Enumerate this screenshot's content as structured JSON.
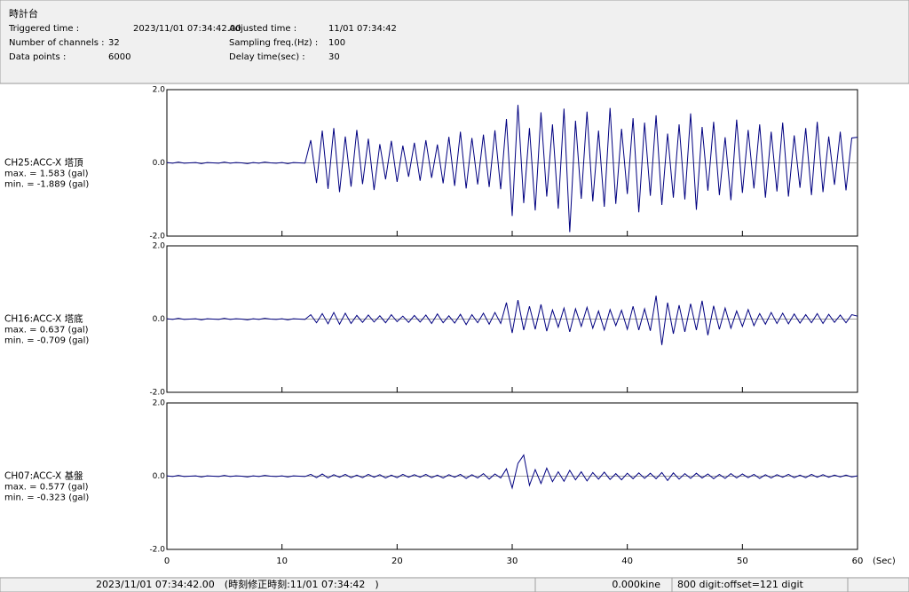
{
  "header": {
    "title": "時計台",
    "fields": [
      {
        "label": "Triggered time :",
        "value": "2023/11/01 07:34:42.00"
      },
      {
        "label": "Number of channels :",
        "value": "32"
      },
      {
        "label": "Data points :",
        "value": "6000"
      },
      {
        "label": "Adjusted time :",
        "value": "11/01 07:34:42"
      },
      {
        "label": "Sampling freq.(Hz) :",
        "value": "100"
      },
      {
        "label": "Delay time(sec) :",
        "value": "30"
      }
    ]
  },
  "status": [
    "2023/11/01 07:34:42.00　(時刻修正時刻:11/01 07:34:42　)",
    "0.000kine",
    "800 digit:offset=121 digit"
  ],
  "chart_data": [
    {
      "type": "line",
      "label": "CH25:ACC-X 塔頂",
      "max_label": "max. = 1.583 (gal)",
      "min_label": "min. = -1.889 (gal)",
      "x": [
        0,
        0.5,
        1,
        1.5,
        2,
        2.5,
        3,
        3.5,
        4,
        4.5,
        5,
        5.5,
        6,
        6.5,
        7,
        7.5,
        8,
        8.5,
        9,
        9.5,
        10,
        10.5,
        11,
        11.5,
        12,
        12.5,
        13,
        13.5,
        14,
        14.5,
        15,
        15.5,
        16,
        16.5,
        17,
        17.5,
        18,
        18.5,
        19,
        19.5,
        20,
        20.5,
        21,
        21.5,
        22,
        22.5,
        23,
        23.5,
        24,
        24.5,
        25,
        25.5,
        26,
        26.5,
        27,
        27.5,
        28,
        28.5,
        29,
        29.5,
        30,
        30.5,
        31,
        31.5,
        32,
        32.5,
        33,
        33.5,
        34,
        34.5,
        35,
        35.5,
        36,
        36.5,
        37,
        37.5,
        38,
        38.5,
        39,
        39.5,
        40,
        40.5,
        41,
        41.5,
        42,
        42.5,
        43,
        43.5,
        44,
        44.5,
        45,
        45.5,
        46,
        46.5,
        47,
        47.5,
        48,
        48.5,
        49,
        49.5,
        50,
        50.5,
        51,
        51.5,
        52,
        52.5,
        53,
        53.5,
        54,
        54.5,
        55,
        55.5,
        56,
        56.5,
        57,
        57.5,
        58,
        58.5,
        59,
        59.5,
        60
      ],
      "series": [
        {
          "color": "#000080",
          "values": [
            0.01,
            -0.01,
            0.02,
            -0.01,
            0.0,
            0.01,
            -0.02,
            0.01,
            0.0,
            -0.01,
            0.02,
            -0.01,
            0.01,
            0.0,
            -0.02,
            0.01,
            -0.01,
            0.02,
            0.0,
            -0.01,
            0.01,
            -0.02,
            0.01,
            0.0,
            -0.01,
            0.62,
            -0.55,
            0.88,
            -0.71,
            0.95,
            -0.8,
            0.72,
            -0.65,
            0.9,
            -0.58,
            0.66,
            -0.74,
            0.51,
            -0.45,
            0.6,
            -0.52,
            0.47,
            -0.38,
            0.55,
            -0.49,
            0.62,
            -0.41,
            0.5,
            -0.56,
            0.71,
            -0.63,
            0.85,
            -0.7,
            0.68,
            -0.59,
            0.77,
            -0.66,
            0.89,
            -0.72,
            1.2,
            -1.45,
            1.583,
            -1.1,
            0.95,
            -1.3,
            1.38,
            -0.92,
            1.05,
            -1.25,
            1.48,
            -1.889,
            1.15,
            -0.98,
            1.4,
            -1.05,
            0.88,
            -1.2,
            1.5,
            -1.12,
            0.93,
            -0.85,
            1.22,
            -1.35,
            1.1,
            -0.9,
            1.3,
            -1.15,
            0.8,
            -0.95,
            1.05,
            -1.0,
            1.35,
            -1.28,
            0.98,
            -0.76,
            1.12,
            -0.88,
            0.7,
            -1.02,
            1.18,
            -0.82,
            0.9,
            -0.7,
            1.05,
            -0.95,
            0.85,
            -0.78,
            1.1,
            -0.92,
            0.75,
            -0.68,
            0.95,
            -0.88,
            1.12,
            -0.8,
            0.72,
            -0.6,
            0.85,
            -0.75,
            0.68,
            0.7
          ]
        }
      ],
      "xlim": [
        0,
        60
      ],
      "xticks": [
        0,
        10,
        20,
        30,
        40,
        50,
        60
      ],
      "ylim": [
        -2,
        2
      ],
      "yticks": [
        {
          "value": -2,
          "label": "-2.0"
        },
        {
          "value": 0,
          "label": "0.0"
        },
        {
          "value": 2,
          "label": "2.0"
        }
      ]
    },
    {
      "type": "line",
      "label": "CH16:ACC-X 塔底",
      "max_label": "max. = 0.637 (gal)",
      "min_label": "min. = -0.709 (gal)",
      "x": [
        0,
        0.5,
        1,
        1.5,
        2,
        2.5,
        3,
        3.5,
        4,
        4.5,
        5,
        5.5,
        6,
        6.5,
        7,
        7.5,
        8,
        8.5,
        9,
        9.5,
        10,
        10.5,
        11,
        11.5,
        12,
        12.5,
        13,
        13.5,
        14,
        14.5,
        15,
        15.5,
        16,
        16.5,
        17,
        17.5,
        18,
        18.5,
        19,
        19.5,
        20,
        20.5,
        21,
        21.5,
        22,
        22.5,
        23,
        23.5,
        24,
        24.5,
        25,
        25.5,
        26,
        26.5,
        27,
        27.5,
        28,
        28.5,
        29,
        29.5,
        30,
        30.5,
        31,
        31.5,
        32,
        32.5,
        33,
        33.5,
        34,
        34.5,
        35,
        35.5,
        36,
        36.5,
        37,
        37.5,
        38,
        38.5,
        39,
        39.5,
        40,
        40.5,
        41,
        41.5,
        42,
        42.5,
        43,
        43.5,
        44,
        44.5,
        45,
        45.5,
        46,
        46.5,
        47,
        47.5,
        48,
        48.5,
        49,
        49.5,
        50,
        50.5,
        51,
        51.5,
        52,
        52.5,
        53,
        53.5,
        54,
        54.5,
        55,
        55.5,
        56,
        56.5,
        57,
        57.5,
        58,
        58.5,
        59,
        59.5,
        60
      ],
      "series": [
        {
          "color": "#000080",
          "values": [
            0.01,
            -0.01,
            0.02,
            -0.01,
            0.0,
            0.01,
            -0.02,
            0.01,
            0.0,
            -0.01,
            0.02,
            -0.01,
            0.01,
            0.0,
            -0.02,
            0.01,
            -0.01,
            0.02,
            0.0,
            -0.01,
            0.01,
            -0.02,
            0.01,
            0.0,
            -0.01,
            0.12,
            -0.1,
            0.15,
            -0.13,
            0.18,
            -0.14,
            0.16,
            -0.12,
            0.1,
            -0.09,
            0.11,
            -0.08,
            0.09,
            -0.1,
            0.12,
            -0.07,
            0.08,
            -0.09,
            0.1,
            -0.08,
            0.11,
            -0.12,
            0.14,
            -0.1,
            0.09,
            -0.11,
            0.13,
            -0.15,
            0.12,
            -0.1,
            0.16,
            -0.14,
            0.18,
            -0.12,
            0.45,
            -0.38,
            0.52,
            -0.3,
            0.35,
            -0.28,
            0.4,
            -0.33,
            0.25,
            -0.22,
            0.3,
            -0.35,
            0.28,
            -0.2,
            0.32,
            -0.25,
            0.22,
            -0.3,
            0.26,
            -0.18,
            0.24,
            -0.28,
            0.35,
            -0.3,
            0.28,
            -0.32,
            0.637,
            -0.709,
            0.45,
            -0.4,
            0.38,
            -0.35,
            0.42,
            -0.3,
            0.5,
            -0.44,
            0.36,
            -0.28,
            0.3,
            -0.25,
            0.22,
            -0.2,
            0.26,
            -0.18,
            0.15,
            -0.14,
            0.18,
            -0.12,
            0.16,
            -0.13,
            0.14,
            -0.11,
            0.12,
            -0.1,
            0.15,
            -0.12,
            0.13,
            -0.09,
            0.11,
            -0.1,
            0.12,
            0.08
          ]
        }
      ],
      "xlim": [
        0,
        60
      ],
      "xticks": [
        0,
        10,
        20,
        30,
        40,
        50,
        60
      ],
      "ylim": [
        -2,
        2
      ],
      "yticks": [
        {
          "value": -2,
          "label": "-2.0"
        },
        {
          "value": 0,
          "label": "0.0"
        },
        {
          "value": 2,
          "label": "2.0"
        }
      ]
    },
    {
      "type": "line",
      "label": "CH07:ACC-X 基盤",
      "max_label": "max. = 0.577 (gal)",
      "min_label": "min. = -0.323 (gal)",
      "xlabel": "(Sec)",
      "x": [
        0,
        0.5,
        1,
        1.5,
        2,
        2.5,
        3,
        3.5,
        4,
        4.5,
        5,
        5.5,
        6,
        6.5,
        7,
        7.5,
        8,
        8.5,
        9,
        9.5,
        10,
        10.5,
        11,
        11.5,
        12,
        12.5,
        13,
        13.5,
        14,
        14.5,
        15,
        15.5,
        16,
        16.5,
        17,
        17.5,
        18,
        18.5,
        19,
        19.5,
        20,
        20.5,
        21,
        21.5,
        22,
        22.5,
        23,
        23.5,
        24,
        24.5,
        25,
        25.5,
        26,
        26.5,
        27,
        27.5,
        28,
        28.5,
        29,
        29.5,
        30,
        30.5,
        31,
        31.5,
        32,
        32.5,
        33,
        33.5,
        34,
        34.5,
        35,
        35.5,
        36,
        36.5,
        37,
        37.5,
        38,
        38.5,
        39,
        39.5,
        40,
        40.5,
        41,
        41.5,
        42,
        42.5,
        43,
        43.5,
        44,
        44.5,
        45,
        45.5,
        46,
        46.5,
        47,
        47.5,
        48,
        48.5,
        49,
        49.5,
        50,
        50.5,
        51,
        51.5,
        52,
        52.5,
        53,
        53.5,
        54,
        54.5,
        55,
        55.5,
        56,
        56.5,
        57,
        57.5,
        58,
        58.5,
        59,
        59.5,
        60
      ],
      "series": [
        {
          "color": "#000080",
          "values": [
            0.01,
            -0.01,
            0.02,
            -0.01,
            0.0,
            0.01,
            -0.02,
            0.01,
            0.0,
            -0.01,
            0.02,
            -0.01,
            0.01,
            0.0,
            -0.02,
            0.01,
            -0.01,
            0.02,
            0.0,
            -0.01,
            0.01,
            -0.02,
            0.01,
            0.0,
            -0.01,
            0.05,
            -0.04,
            0.06,
            -0.05,
            0.04,
            -0.03,
            0.05,
            -0.04,
            0.03,
            -0.04,
            0.05,
            -0.03,
            0.04,
            -0.05,
            0.03,
            -0.04,
            0.05,
            -0.03,
            0.04,
            -0.03,
            0.05,
            -0.04,
            0.03,
            -0.05,
            0.04,
            -0.03,
            0.05,
            -0.06,
            0.04,
            -0.05,
            0.07,
            -0.08,
            0.06,
            -0.05,
            0.2,
            -0.323,
            0.35,
            0.577,
            -0.25,
            0.18,
            -0.2,
            0.22,
            -0.15,
            0.12,
            -0.14,
            0.16,
            -0.1,
            0.12,
            -0.13,
            0.1,
            -0.08,
            0.11,
            -0.09,
            0.07,
            -0.1,
            0.08,
            -0.07,
            0.09,
            -0.06,
            0.08,
            -0.07,
            0.1,
            -0.12,
            0.09,
            -0.08,
            0.07,
            -0.06,
            0.08,
            -0.05,
            0.06,
            -0.07,
            0.05,
            -0.06,
            0.07,
            -0.05,
            0.06,
            -0.04,
            0.05,
            -0.06,
            0.04,
            -0.05,
            0.04,
            -0.03,
            0.05,
            -0.04,
            0.03,
            -0.04,
            0.05,
            -0.03,
            0.04,
            -0.03,
            0.03,
            -0.02,
            0.03,
            -0.02,
            0.01
          ]
        }
      ],
      "xlim": [
        0,
        60
      ],
      "xticks": [
        0,
        10,
        20,
        30,
        40,
        50,
        60
      ],
      "ylim": [
        -2,
        2
      ],
      "yticks": [
        {
          "value": -2,
          "label": "-2.0"
        },
        {
          "value": 0,
          "label": "0.0"
        },
        {
          "value": 2,
          "label": "2.0"
        }
      ]
    }
  ]
}
